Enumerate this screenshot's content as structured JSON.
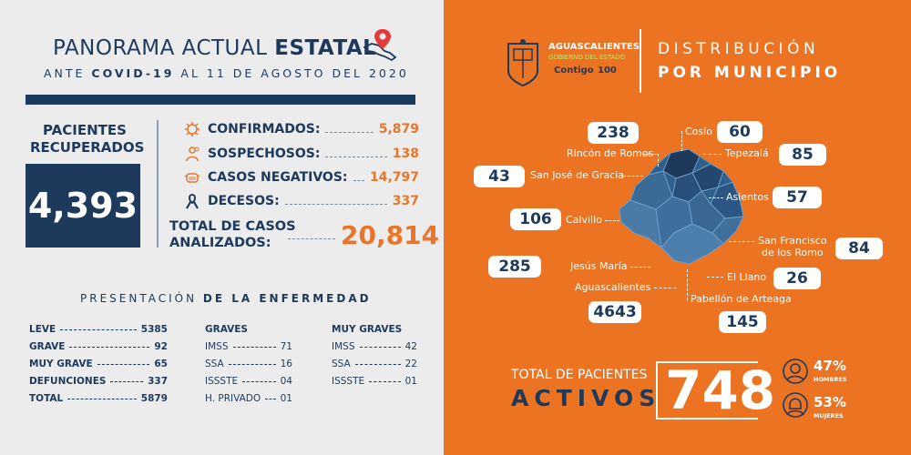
{
  "header": {
    "title_plain": "PANORAMA ACTUAL",
    "title_bold": "ESTATAL",
    "subtitle_pre": "ANTE",
    "subtitle_bold": "COVID-19",
    "subtitle_post": "AL 11 DE AGOSTO DEL 2020"
  },
  "recovered": {
    "label": "PACIENTES RECUPERADOS",
    "value": "4,393"
  },
  "stats": [
    {
      "label": "CONFIRMADOS:",
      "value": "5,879",
      "icon": "virus-icon"
    },
    {
      "label": "SOSPECHOSOS:",
      "value": "138",
      "icon": "suspect-icon"
    },
    {
      "label": "CASOS NEGATIVOS:",
      "value": "14,797",
      "icon": "mask-icon"
    },
    {
      "label": "DECESOS:",
      "value": "337",
      "icon": "ribbon-icon"
    }
  ],
  "total_cases": {
    "label_line1": "TOTAL DE CASOS",
    "label_line2": "ANALIZADOS:",
    "value": "20,814"
  },
  "presentation": {
    "title_plain": "PRESENTACIÓN",
    "title_bold": "DE LA ENFERMEDAD"
  },
  "severity": [
    {
      "label": "LEVE",
      "value": "5385"
    },
    {
      "label": "GRAVE",
      "value": "92"
    },
    {
      "label": "MUY GRAVE",
      "value": "65"
    },
    {
      "label": "DEFUNCIONES",
      "value": "337"
    },
    {
      "label": "TOTAL",
      "value": "5879"
    }
  ],
  "graves": {
    "title": "GRAVES",
    "rows": [
      {
        "label": "IMSS",
        "value": "71"
      },
      {
        "label": "SSA",
        "value": "16"
      },
      {
        "label": "ISSSTE",
        "value": "04"
      },
      {
        "label": "H. PRIVADO",
        "value": "01"
      }
    ]
  },
  "muy_graves": {
    "title": "MUY GRAVES",
    "rows": [
      {
        "label": "IMSS",
        "value": "42"
      },
      {
        "label": "SSA",
        "value": "22"
      },
      {
        "label": "ISSSTE",
        "value": "01"
      }
    ]
  },
  "logo": {
    "line1": "AGUASCALIENTES",
    "line2": "GOBIERNO DEL ESTADO",
    "line3": "Contigo",
    "line4": "100"
  },
  "distribution": {
    "line1": "DISTRIBUCIÓN",
    "line2": "POR MUNICIPIO"
  },
  "municipalities": [
    {
      "name": "Rincón de Romos",
      "value": "238"
    },
    {
      "name": "Cosío",
      "value": "60"
    },
    {
      "name": "Tepezalá",
      "value": "85"
    },
    {
      "name": "San José de Gracia",
      "value": "43"
    },
    {
      "name": "Asientos",
      "value": "57"
    },
    {
      "name": "Calvillo",
      "value": "106"
    },
    {
      "name": "San Francisco de los Romo",
      "name_line1": "San Francisco",
      "name_line2": "de los Romo",
      "value": "84"
    },
    {
      "name": "Jesús María",
      "value": "285"
    },
    {
      "name": "El Llano",
      "value": "26"
    },
    {
      "name": "Aguascalientes",
      "value": "4643"
    },
    {
      "name": "Pabellón de Arteaga",
      "value": "145"
    }
  ],
  "active": {
    "line1": "TOTAL DE PACIENTES",
    "line2": "ACTIVOS",
    "value": "748",
    "men_pct": "47%",
    "men_label": "HOMBRES",
    "women_pct": "53%",
    "women_label": "MUJERES"
  },
  "colors": {
    "navy": "#1d3a5c",
    "orange": "#ec7322",
    "light_gray": "#ececec",
    "map_blue": "#2f5f8c"
  }
}
